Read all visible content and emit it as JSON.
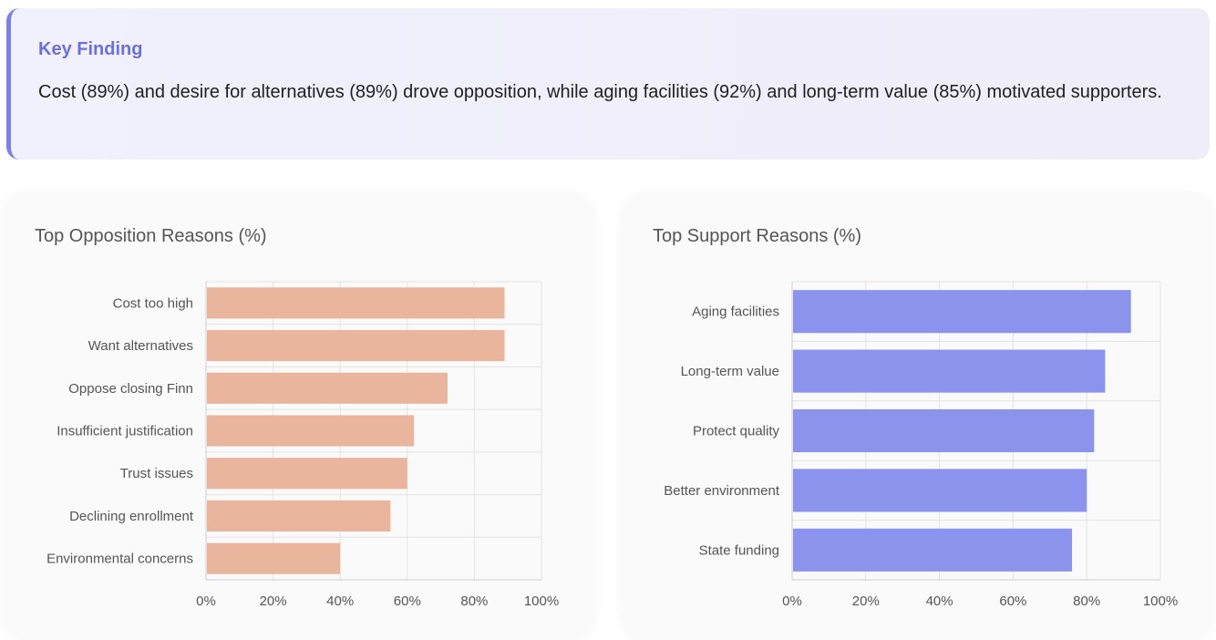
{
  "finding": {
    "title": "Key Finding",
    "text": "Cost (89%) and desire for alternatives (89%) drove opposition, while aging facilities (92%) and long-term value (85%) motivated supporters."
  },
  "colors": {
    "opposition_bar": "#e9b59c",
    "support_bar": "#8b93ec",
    "accent": "#6b70e0"
  },
  "chart_data": [
    {
      "type": "bar",
      "orientation": "horizontal",
      "title": "Top Opposition Reasons (%)",
      "categories": [
        "Cost too high",
        "Want alternatives",
        "Oppose closing Finn",
        "Insufficient justification",
        "Trust issues",
        "Declining enrollment",
        "Environmental concerns"
      ],
      "values": [
        89,
        89,
        72,
        62,
        60,
        55,
        40
      ],
      "xlim": [
        0,
        100
      ],
      "xticks": [
        "0%",
        "20%",
        "40%",
        "60%",
        "80%",
        "100%"
      ],
      "grid": true
    },
    {
      "type": "bar",
      "orientation": "horizontal",
      "title": "Top Support Reasons (%)",
      "categories": [
        "Aging facilities",
        "Long-term value",
        "Protect quality",
        "Better environment",
        "State funding"
      ],
      "values": [
        92,
        85,
        82,
        80,
        76
      ],
      "xlim": [
        0,
        100
      ],
      "xticks": [
        "0%",
        "20%",
        "40%",
        "60%",
        "80%",
        "100%"
      ],
      "grid": true
    }
  ]
}
